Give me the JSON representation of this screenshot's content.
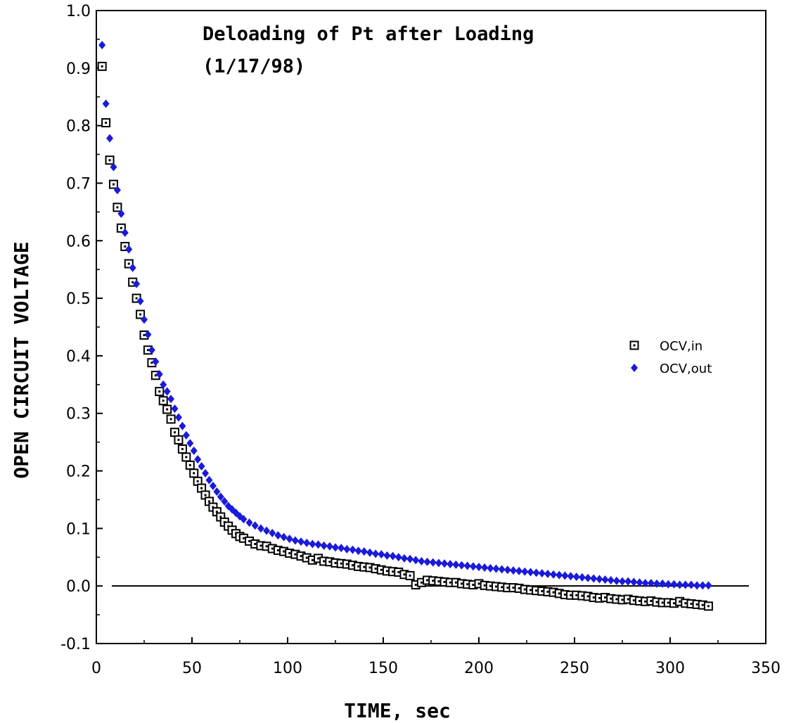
{
  "chart_data": {
    "type": "scatter",
    "title_lines": [
      "Deloading of Pt after Loading",
      "(1/17/98)"
    ],
    "xlabel": "TIME, sec",
    "ylabel": "OPEN CIRCUIT VOLTAGE",
    "xlim": [
      0,
      350
    ],
    "ylim": [
      -0.1,
      1.0
    ],
    "x_ticks": [
      0,
      50,
      100,
      150,
      200,
      250,
      300,
      350
    ],
    "x_tick_labels": [
      "0",
      "50",
      "100",
      "150",
      "200",
      "250",
      "300",
      "350"
    ],
    "y_ticks": [
      -0.1,
      0.0,
      0.1,
      0.2,
      0.3,
      0.4,
      0.5,
      0.6,
      0.7,
      0.8,
      0.9,
      1.0
    ],
    "y_tick_labels": [
      "-0.1",
      "0.0",
      "0.1",
      "0.2",
      "0.3",
      "0.4",
      "0.5",
      "0.6",
      "0.7",
      "0.8",
      "0.9",
      "1.0"
    ],
    "zero_line": true,
    "grid": false,
    "legend_position": "right",
    "series": [
      {
        "name": "OCV,in",
        "marker": "open-square",
        "color": "#000000",
        "points": [
          [
            3,
            0.903
          ],
          [
            5,
            0.805
          ],
          [
            7,
            0.74
          ],
          [
            9,
            0.698
          ],
          [
            11,
            0.658
          ],
          [
            13,
            0.622
          ],
          [
            15,
            0.59
          ],
          [
            17,
            0.56
          ],
          [
            19,
            0.528
          ],
          [
            21,
            0.5
          ],
          [
            23,
            0.472
          ],
          [
            25,
            0.436
          ],
          [
            27,
            0.41
          ],
          [
            29,
            0.388
          ],
          [
            31,
            0.366
          ],
          [
            33,
            0.338
          ],
          [
            35,
            0.322
          ],
          [
            37,
            0.307
          ],
          [
            39,
            0.29
          ],
          [
            41,
            0.267
          ],
          [
            43,
            0.254
          ],
          [
            45,
            0.238
          ],
          [
            47,
            0.224
          ],
          [
            49,
            0.21
          ],
          [
            51,
            0.196
          ],
          [
            53,
            0.182
          ],
          [
            55,
            0.17
          ],
          [
            57,
            0.158
          ],
          [
            59,
            0.147
          ],
          [
            61,
            0.137
          ],
          [
            63,
            0.129
          ],
          [
            65,
            0.12
          ],
          [
            67,
            0.111
          ],
          [
            69,
            0.104
          ],
          [
            71,
            0.097
          ],
          [
            73,
            0.091
          ],
          [
            75,
            0.086
          ],
          [
            77,
            0.083
          ],
          [
            80,
            0.078
          ],
          [
            83,
            0.073
          ],
          [
            86,
            0.07
          ],
          [
            89,
            0.069
          ],
          [
            92,
            0.065
          ],
          [
            95,
            0.062
          ],
          [
            98,
            0.06
          ],
          [
            101,
            0.057
          ],
          [
            104,
            0.055
          ],
          [
            107,
            0.052
          ],
          [
            110,
            0.049
          ],
          [
            113,
            0.045
          ],
          [
            116,
            0.048
          ],
          [
            119,
            0.043
          ],
          [
            122,
            0.042
          ],
          [
            125,
            0.04
          ],
          [
            128,
            0.039
          ],
          [
            131,
            0.038
          ],
          [
            134,
            0.036
          ],
          [
            137,
            0.034
          ],
          [
            140,
            0.033
          ],
          [
            143,
            0.032
          ],
          [
            146,
            0.03
          ],
          [
            149,
            0.028
          ],
          [
            152,
            0.026
          ],
          [
            155,
            0.025
          ],
          [
            158,
            0.024
          ],
          [
            161,
            0.02
          ],
          [
            164,
            0.018
          ],
          [
            167,
            0.002
          ],
          [
            170,
            0.006
          ],
          [
            173,
            0.01
          ],
          [
            176,
            0.009
          ],
          [
            179,
            0.008
          ],
          [
            182,
            0.007
          ],
          [
            185,
            0.006
          ],
          [
            188,
            0.006
          ],
          [
            191,
            0.004
          ],
          [
            194,
            0.003
          ],
          [
            197,
            0.002
          ],
          [
            200,
            0.004
          ],
          [
            203,
            0.001
          ],
          [
            206,
            0.0
          ],
          [
            209,
            -0.001
          ],
          [
            212,
            -0.002
          ],
          [
            215,
            -0.003
          ],
          [
            218,
            -0.003
          ],
          [
            221,
            -0.004
          ],
          [
            224,
            -0.006
          ],
          [
            227,
            -0.007
          ],
          [
            230,
            -0.008
          ],
          [
            233,
            -0.009
          ],
          [
            236,
            -0.01
          ],
          [
            239,
            -0.011
          ],
          [
            242,
            -0.013
          ],
          [
            245,
            -0.015
          ],
          [
            248,
            -0.016
          ],
          [
            251,
            -0.016
          ],
          [
            254,
            -0.017
          ],
          [
            257,
            -0.018
          ],
          [
            260,
            -0.02
          ],
          [
            263,
            -0.021
          ],
          [
            266,
            -0.02
          ],
          [
            269,
            -0.022
          ],
          [
            272,
            -0.023
          ],
          [
            275,
            -0.024
          ],
          [
            278,
            -0.023
          ],
          [
            281,
            -0.025
          ],
          [
            284,
            -0.026
          ],
          [
            287,
            -0.027
          ],
          [
            290,
            -0.026
          ],
          [
            293,
            -0.028
          ],
          [
            296,
            -0.029
          ],
          [
            299,
            -0.029
          ],
          [
            302,
            -0.03
          ],
          [
            305,
            -0.027
          ],
          [
            308,
            -0.03
          ],
          [
            311,
            -0.031
          ],
          [
            314,
            -0.032
          ],
          [
            317,
            -0.033
          ],
          [
            320,
            -0.035
          ]
        ]
      },
      {
        "name": "OCV,out",
        "marker": "filled-diamond",
        "color": "#1a1adb",
        "points": [
          [
            3,
            0.94
          ],
          [
            5,
            0.838
          ],
          [
            7,
            0.778
          ],
          [
            9,
            0.728
          ],
          [
            11,
            0.688
          ],
          [
            13,
            0.647
          ],
          [
            15,
            0.614
          ],
          [
            17,
            0.585
          ],
          [
            19,
            0.553
          ],
          [
            21,
            0.525
          ],
          [
            23,
            0.495
          ],
          [
            25,
            0.463
          ],
          [
            27,
            0.437
          ],
          [
            29,
            0.41
          ],
          [
            31,
            0.39
          ],
          [
            33,
            0.368
          ],
          [
            35,
            0.35
          ],
          [
            37,
            0.338
          ],
          [
            39,
            0.325
          ],
          [
            41,
            0.308
          ],
          [
            43,
            0.293
          ],
          [
            45,
            0.278
          ],
          [
            47,
            0.262
          ],
          [
            49,
            0.248
          ],
          [
            51,
            0.235
          ],
          [
            53,
            0.22
          ],
          [
            55,
            0.208
          ],
          [
            57,
            0.196
          ],
          [
            59,
            0.184
          ],
          [
            61,
            0.174
          ],
          [
            63,
            0.164
          ],
          [
            65,
            0.155
          ],
          [
            67,
            0.147
          ],
          [
            69,
            0.139
          ],
          [
            71,
            0.133
          ],
          [
            73,
            0.127
          ],
          [
            75,
            0.121
          ],
          [
            77,
            0.116
          ],
          [
            80,
            0.11
          ],
          [
            83,
            0.105
          ],
          [
            86,
            0.1
          ],
          [
            89,
            0.096
          ],
          [
            92,
            0.092
          ],
          [
            95,
            0.088
          ],
          [
            98,
            0.085
          ],
          [
            101,
            0.082
          ],
          [
            104,
            0.079
          ],
          [
            107,
            0.077
          ],
          [
            110,
            0.075
          ],
          [
            113,
            0.073
          ],
          [
            116,
            0.072
          ],
          [
            119,
            0.07
          ],
          [
            122,
            0.069
          ],
          [
            125,
            0.067
          ],
          [
            128,
            0.066
          ],
          [
            131,
            0.064
          ],
          [
            134,
            0.063
          ],
          [
            137,
            0.061
          ],
          [
            140,
            0.06
          ],
          [
            143,
            0.058
          ],
          [
            146,
            0.056
          ],
          [
            149,
            0.055
          ],
          [
            152,
            0.053
          ],
          [
            155,
            0.052
          ],
          [
            158,
            0.05
          ],
          [
            161,
            0.048
          ],
          [
            164,
            0.047
          ],
          [
            167,
            0.045
          ],
          [
            170,
            0.043
          ],
          [
            173,
            0.042
          ],
          [
            176,
            0.041
          ],
          [
            179,
            0.04
          ],
          [
            182,
            0.039
          ],
          [
            185,
            0.038
          ],
          [
            188,
            0.037
          ],
          [
            191,
            0.036
          ],
          [
            194,
            0.035
          ],
          [
            197,
            0.034
          ],
          [
            200,
            0.033
          ],
          [
            203,
            0.032
          ],
          [
            206,
            0.031
          ],
          [
            209,
            0.03
          ],
          [
            212,
            0.029
          ],
          [
            215,
            0.028
          ],
          [
            218,
            0.027
          ],
          [
            221,
            0.026
          ],
          [
            224,
            0.025
          ],
          [
            227,
            0.024
          ],
          [
            230,
            0.023
          ],
          [
            233,
            0.022
          ],
          [
            236,
            0.021
          ],
          [
            239,
            0.02
          ],
          [
            242,
            0.019
          ],
          [
            245,
            0.018
          ],
          [
            248,
            0.017
          ],
          [
            251,
            0.016
          ],
          [
            254,
            0.015
          ],
          [
            257,
            0.014
          ],
          [
            260,
            0.013
          ],
          [
            263,
            0.012
          ],
          [
            266,
            0.011
          ],
          [
            269,
            0.01
          ],
          [
            272,
            0.009
          ],
          [
            275,
            0.008
          ],
          [
            278,
            0.008
          ],
          [
            281,
            0.007
          ],
          [
            284,
            0.006
          ],
          [
            287,
            0.005
          ],
          [
            290,
            0.005
          ],
          [
            293,
            0.004
          ],
          [
            296,
            0.004
          ],
          [
            299,
            0.003
          ],
          [
            302,
            0.003
          ],
          [
            305,
            0.002
          ],
          [
            308,
            0.002
          ],
          [
            311,
            0.002
          ],
          [
            314,
            0.001
          ],
          [
            317,
            0.001
          ],
          [
            320,
            0.001
          ]
        ]
      }
    ]
  }
}
